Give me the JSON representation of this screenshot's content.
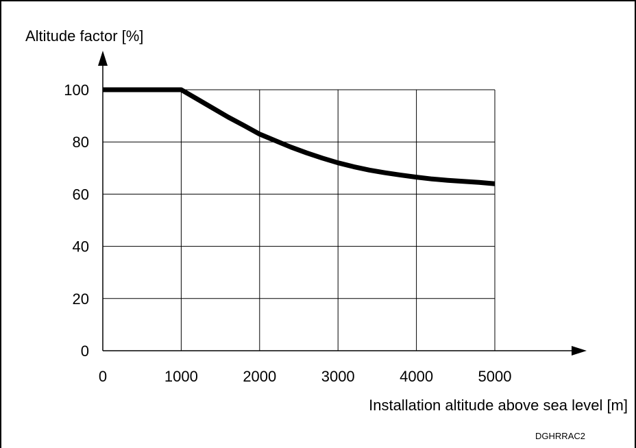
{
  "chart_data": {
    "type": "line",
    "ylabel": "Altitude factor [%]",
    "xlabel": "Installation altitude above sea level [m]",
    "code": "DGHRRAC2",
    "xlim": [
      0,
      5000
    ],
    "ylim": [
      0,
      100
    ],
    "x_ticks": [
      "0",
      "1000",
      "2000",
      "3000",
      "4000",
      "5000"
    ],
    "y_ticks": [
      "0",
      "20",
      "40",
      "60",
      "80",
      "100"
    ],
    "grid": true,
    "series": [
      {
        "x": [
          0,
          1000,
          1200,
          1400,
          1600,
          1800,
          2000,
          2200,
          2400,
          2600,
          2800,
          3000,
          3200,
          3400,
          3600,
          3800,
          4000,
          4200,
          4400,
          4600,
          4800,
          5000
        ],
        "y": [
          100,
          100,
          96.5,
          93,
          89.5,
          86.3,
          83,
          80.5,
          78,
          75.8,
          73.8,
          72,
          70.5,
          69.2,
          68.2,
          67.3,
          66.5,
          65.8,
          65.3,
          64.9,
          64.5,
          64
        ]
      }
    ]
  },
  "colors": {
    "line": "#000000",
    "grid": "#000000",
    "background": "#ffffff"
  }
}
